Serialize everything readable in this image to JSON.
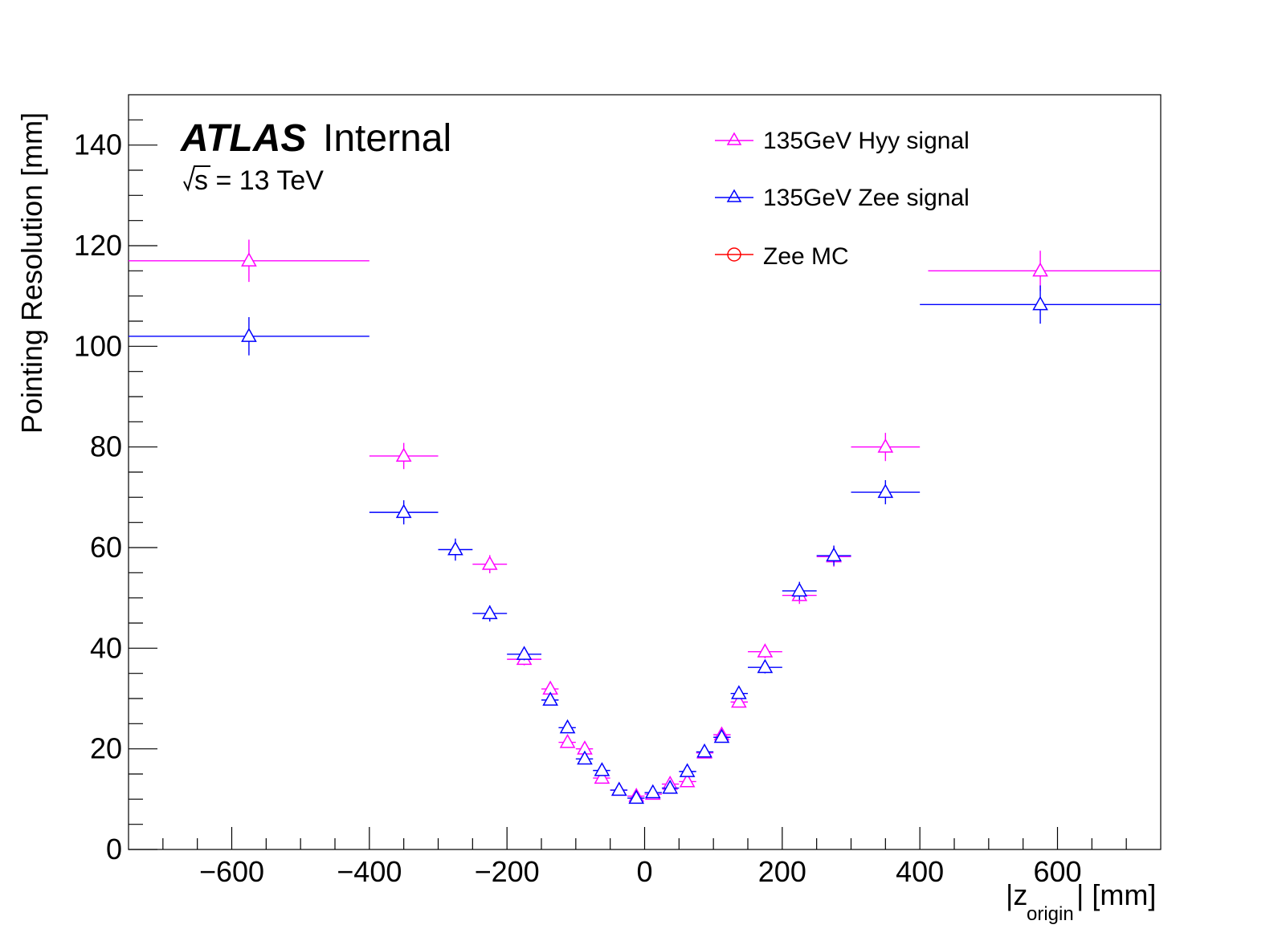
{
  "chart_data": {
    "type": "scatter",
    "title": "",
    "xlabel_main": "|z",
    "xlabel_sub": "origin",
    "xlabel_tail": "| [mm]",
    "ylabel": "Pointing Resolution [mm]",
    "xlim": [
      -750,
      750
    ],
    "ylim": [
      0,
      150
    ],
    "xticks": [
      -600,
      -400,
      -200,
      0,
      200,
      400,
      600
    ],
    "xtick_labels": [
      "−600",
      "−400",
      "−200",
      "0",
      "200",
      "400",
      "600"
    ],
    "yticks": [
      0,
      20,
      40,
      60,
      80,
      100,
      120,
      140
    ],
    "ytick_labels": [
      "0",
      "20",
      "40",
      "60",
      "80",
      "100",
      "120",
      "140"
    ],
    "atlas_label": "ATLAS",
    "atlas_status": "Internal",
    "energy_label": "s = 13 TeV",
    "series": [
      {
        "name": "135GeV Hyy signal",
        "color": "#ff00ff",
        "marker": "triangle",
        "points": [
          {
            "x": -575,
            "y": 117,
            "xlo": -750,
            "xhi": -400,
            "err": 4.2
          },
          {
            "x": -350,
            "y": 78.2,
            "xlo": -400,
            "xhi": -300,
            "err": 2.6
          },
          {
            "x": -225,
            "y": 56.7,
            "xlo": -250,
            "xhi": -200,
            "err": 1.8
          },
          {
            "x": -175,
            "y": 37.8,
            "xlo": -200,
            "xhi": -150,
            "err": 1.2
          },
          {
            "x": -137,
            "y": 31.9,
            "xlo": -150,
            "xhi": -125,
            "err": 1.0
          },
          {
            "x": -112,
            "y": 21.3,
            "xlo": -125,
            "xhi": -100,
            "err": 0.9
          },
          {
            "x": -87,
            "y": 20.0,
            "xlo": -100,
            "xhi": -75,
            "err": 0.8
          },
          {
            "x": -62,
            "y": 14.2,
            "xlo": -75,
            "xhi": -50,
            "err": 0.7
          },
          {
            "x": -37,
            "y": 11.8,
            "xlo": -50,
            "xhi": -25,
            "err": 0.6
          },
          {
            "x": -12,
            "y": 10.6,
            "xlo": -25,
            "xhi": 0,
            "err": 0.5
          },
          {
            "x": 12,
            "y": 11.0,
            "xlo": 0,
            "xhi": 25,
            "err": 0.5
          },
          {
            "x": 37,
            "y": 13.0,
            "xlo": 25,
            "xhi": 50,
            "err": 0.6
          },
          {
            "x": 62,
            "y": 13.5,
            "xlo": 50,
            "xhi": 75,
            "err": 0.7
          },
          {
            "x": 87,
            "y": 19.2,
            "xlo": 75,
            "xhi": 100,
            "err": 0.8
          },
          {
            "x": 112,
            "y": 22.8,
            "xlo": 100,
            "xhi": 125,
            "err": 0.9
          },
          {
            "x": 137,
            "y": 29.3,
            "xlo": 125,
            "xhi": 150,
            "err": 1.0
          },
          {
            "x": 175,
            "y": 39.3,
            "xlo": 150,
            "xhi": 200,
            "err": 1.3
          },
          {
            "x": 225,
            "y": 50.5,
            "xlo": 200,
            "xhi": 250,
            "err": 1.7
          },
          {
            "x": 275,
            "y": 58.2,
            "xlo": 250,
            "xhi": 300,
            "err": 2.0
          },
          {
            "x": 350,
            "y": 80.0,
            "xlo": 300,
            "xhi": 400,
            "err": 2.8
          },
          {
            "x": 575,
            "y": 115,
            "xlo": 412,
            "xhi": 750,
            "err": 4.0
          }
        ]
      },
      {
        "name": "135GeV Zee signal",
        "color": "#0000ff",
        "marker": "triangle",
        "points": [
          {
            "x": -575,
            "y": 102,
            "xlo": -750,
            "xhi": -400,
            "err": 3.8
          },
          {
            "x": -350,
            "y": 67.0,
            "xlo": -400,
            "xhi": -300,
            "err": 2.4
          },
          {
            "x": -275,
            "y": 59.6,
            "xlo": -300,
            "xhi": -250,
            "err": 2.2
          },
          {
            "x": -225,
            "y": 46.9,
            "xlo": -250,
            "xhi": -200,
            "err": 1.6
          },
          {
            "x": -175,
            "y": 38.8,
            "xlo": -200,
            "xhi": -150,
            "err": 1.2
          },
          {
            "x": -137,
            "y": 29.7,
            "xlo": -150,
            "xhi": -125,
            "err": 1.0
          },
          {
            "x": -112,
            "y": 24.2,
            "xlo": -125,
            "xhi": -100,
            "err": 0.9
          },
          {
            "x": -87,
            "y": 18.0,
            "xlo": -100,
            "xhi": -75,
            "err": 0.8
          },
          {
            "x": -62,
            "y": 15.7,
            "xlo": -75,
            "xhi": -50,
            "err": 0.7
          },
          {
            "x": -37,
            "y": 11.8,
            "xlo": -50,
            "xhi": -25,
            "err": 0.6
          },
          {
            "x": -12,
            "y": 10.2,
            "xlo": -25,
            "xhi": 0,
            "err": 0.5
          },
          {
            "x": 12,
            "y": 11.3,
            "xlo": 0,
            "xhi": 25,
            "err": 0.5
          },
          {
            "x": 37,
            "y": 12.2,
            "xlo": 25,
            "xhi": 50,
            "err": 0.6
          },
          {
            "x": 62,
            "y": 15.5,
            "xlo": 50,
            "xhi": 75,
            "err": 0.7
          },
          {
            "x": 87,
            "y": 19.4,
            "xlo": 75,
            "xhi": 100,
            "err": 0.8
          },
          {
            "x": 112,
            "y": 22.3,
            "xlo": 100,
            "xhi": 125,
            "err": 0.9
          },
          {
            "x": 137,
            "y": 31.0,
            "xlo": 125,
            "xhi": 150,
            "err": 1.0
          },
          {
            "x": 175,
            "y": 36.2,
            "xlo": 150,
            "xhi": 200,
            "err": 1.2
          },
          {
            "x": 225,
            "y": 51.4,
            "xlo": 200,
            "xhi": 250,
            "err": 1.8
          },
          {
            "x": 275,
            "y": 58.4,
            "xlo": 250,
            "xhi": 300,
            "err": 2.0
          },
          {
            "x": 350,
            "y": 71.0,
            "xlo": 300,
            "xhi": 400,
            "err": 2.4
          },
          {
            "x": 575,
            "y": 108.3,
            "xlo": 400,
            "xhi": 750,
            "err": 3.8
          }
        ]
      },
      {
        "name": "Zee MC",
        "color": "#ff0000",
        "marker": "circle",
        "points": []
      }
    ]
  }
}
